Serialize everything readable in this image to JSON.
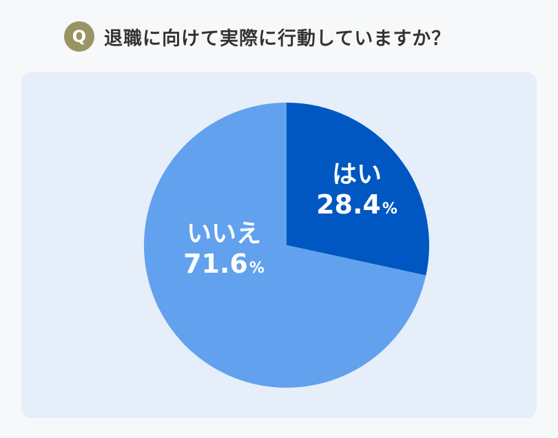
{
  "question": {
    "badge": "Q",
    "text": "退職に向けて実際に行動していますか？"
  },
  "colors": {
    "badge": "#9a9364",
    "panel": "#e5eef9",
    "yes": "#0057c1",
    "no": "#62a1ee"
  },
  "chart_data": {
    "type": "pie",
    "title": "",
    "unit": "%",
    "slices": [
      {
        "label": "はい",
        "value": 28.4,
        "display": "28.4",
        "color": "#0057c1"
      },
      {
        "label": "いいえ",
        "value": 71.6,
        "display": "71.6",
        "color": "#62a1ee"
      }
    ]
  }
}
